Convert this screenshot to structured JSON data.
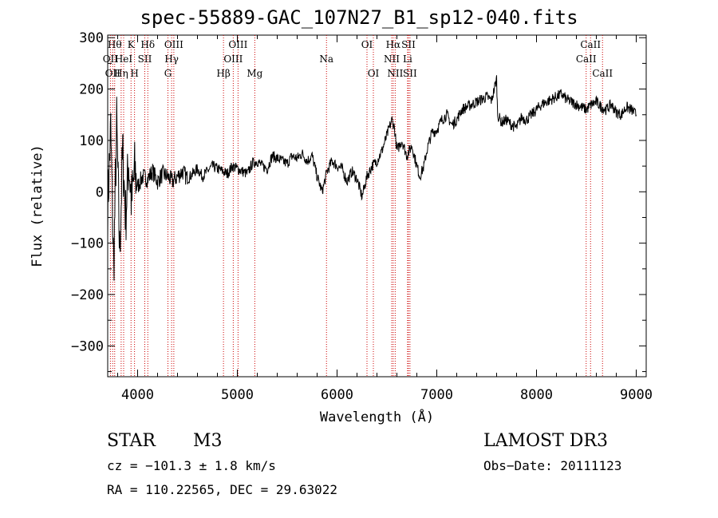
{
  "chart_data": {
    "type": "line",
    "title": "spec-55889-GAC_107N27_B1_sp12-040.fits",
    "xlabel": "Wavelength (Å)",
    "ylabel": "Flux (relative)",
    "xlim": [
      3700,
      9100
    ],
    "ylim": [
      -360,
      305
    ],
    "xticks": [
      4000,
      5000,
      6000,
      7000,
      8000,
      9000
    ],
    "yticks": [
      -300,
      -200,
      -100,
      0,
      100,
      200,
      300
    ],
    "grid": false,
    "line_color": "#000000",
    "marker_color": "#cc0000",
    "series": [
      {
        "name": "flux",
        "x": [
          3700,
          3730,
          3760,
          3790,
          3820,
          3850,
          3880,
          3910,
          3940,
          3970,
          4000,
          4050,
          4100,
          4150,
          4200,
          4250,
          4300,
          4350,
          4400,
          4450,
          4500,
          4550,
          4600,
          4650,
          4700,
          4750,
          4800,
          4850,
          4900,
          4950,
          5000,
          5050,
          5100,
          5150,
          5200,
          5250,
          5300,
          5350,
          5400,
          5450,
          5500,
          5550,
          5600,
          5650,
          5700,
          5750,
          5800,
          5850,
          5900,
          5950,
          6000,
          6050,
          6100,
          6150,
          6200,
          6250,
          6300,
          6350,
          6400,
          6450,
          6500,
          6550,
          6575,
          6600,
          6650,
          6700,
          6750,
          6800,
          6830,
          6870,
          6900,
          6950,
          7000,
          7050,
          7100,
          7150,
          7200,
          7250,
          7300,
          7350,
          7400,
          7450,
          7500,
          7550,
          7600,
          7610,
          7650,
          7700,
          7750,
          7800,
          7850,
          7900,
          7950,
          8000,
          8050,
          8100,
          8150,
          8200,
          8250,
          8300,
          8350,
          8400,
          8450,
          8500,
          8550,
          8600,
          8650,
          8700,
          8750,
          8800,
          8850,
          8900,
          8950,
          9000
        ],
        "y": [
          -30,
          120,
          -150,
          130,
          -120,
          80,
          -50,
          60,
          -20,
          40,
          10,
          30,
          25,
          40,
          20,
          35,
          30,
          20,
          30,
          40,
          25,
          35,
          45,
          30,
          40,
          50,
          45,
          40,
          35,
          50,
          45,
          40,
          35,
          55,
          60,
          50,
          45,
          70,
          65,
          60,
          55,
          70,
          65,
          75,
          60,
          70,
          30,
          0,
          40,
          60,
          50,
          45,
          20,
          40,
          25,
          -10,
          30,
          50,
          60,
          80,
          110,
          140,
          125,
          80,
          100,
          70,
          90,
          50,
          30,
          50,
          80,
          115,
          120,
          140,
          150,
          130,
          140,
          160,
          165,
          170,
          175,
          180,
          185,
          178,
          220,
          150,
          135,
          140,
          130,
          125,
          145,
          140,
          150,
          160,
          170,
          175,
          180,
          185,
          190,
          180,
          175,
          170,
          165,
          160,
          170,
          175,
          165,
          160,
          170,
          155,
          150,
          165,
          160,
          150
        ]
      }
    ],
    "lines": [
      {
        "wl": 3727,
        "label": "OII",
        "row": 2
      },
      {
        "wl": 3750,
        "label": "OII",
        "row": 3
      },
      {
        "wl": 3770,
        "label": "Hθ",
        "row": 1
      },
      {
        "wl": 3835,
        "label": "Hη",
        "row": 3
      },
      {
        "wl": 3860,
        "label": "HeI",
        "row": 2
      },
      {
        "wl": 3934,
        "label": "K",
        "row": 1
      },
      {
        "wl": 3969,
        "label": "H",
        "row": 3
      },
      {
        "wl": 4072,
        "label": "SII",
        "row": 2
      },
      {
        "wl": 4102,
        "label": "Hδ",
        "row": 1
      },
      {
        "wl": 4304,
        "label": "G",
        "row": 3
      },
      {
        "wl": 4341,
        "label": "Hγ",
        "row": 2
      },
      {
        "wl": 4363,
        "label": "OIII",
        "row": 1
      },
      {
        "wl": 4861,
        "label": "Hβ",
        "row": 3
      },
      {
        "wl": 4959,
        "label": "OIII",
        "row": 2
      },
      {
        "wl": 5007,
        "label": "OIII",
        "row": 1
      },
      {
        "wl": 5175,
        "label": "Mg",
        "row": 3
      },
      {
        "wl": 5894,
        "label": "Na",
        "row": 2
      },
      {
        "wl": 6300,
        "label": "OI",
        "row": 1
      },
      {
        "wl": 6364,
        "label": "OI",
        "row": 3
      },
      {
        "wl": 6548,
        "label": "NII",
        "row": 2
      },
      {
        "wl": 6563,
        "label": "Hα",
        "row": 1
      },
      {
        "wl": 6583,
        "label": "NII",
        "row": 3
      },
      {
        "wl": 6707,
        "label": "Li",
        "row": 2
      },
      {
        "wl": 6716,
        "label": "SII",
        "row": 1
      },
      {
        "wl": 6731,
        "label": "SII",
        "row": 3
      },
      {
        "wl": 8498,
        "label": "CaII",
        "row": 2
      },
      {
        "wl": 8542,
        "label": "CaII",
        "row": 1
      },
      {
        "wl": 8662,
        "label": "CaII",
        "row": 3
      }
    ]
  },
  "info": {
    "object_type": "STAR",
    "subclass": "M3",
    "survey": "LAMOST DR3",
    "redshift": "cz = −101.3 ± 1.8 km/s",
    "obs_date": "Obs−Date: 20111123",
    "coords": "RA = 110.22565, DEC =  29.63022"
  }
}
